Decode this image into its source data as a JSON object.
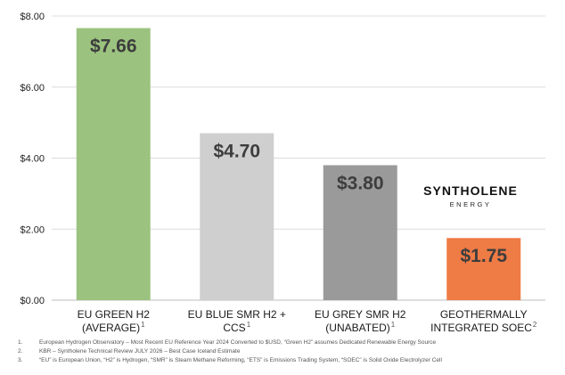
{
  "chart_data": {
    "type": "bar",
    "categories": [
      {
        "line1": "EU GREEN H2",
        "line2": "(AVERAGE)",
        "sup": "1"
      },
      {
        "line1": "EU BLUE SMR H2 +",
        "line2": "CCS",
        "sup": "1"
      },
      {
        "line1": "EU GREY SMR H2",
        "line2": "(UNABATED)",
        "sup": "1"
      },
      {
        "line1": "GEOTHERMALLY",
        "line2": "INTEGRATED SOEC",
        "sup": "2"
      }
    ],
    "values": [
      7.66,
      4.7,
      3.8,
      1.75
    ],
    "data_labels": [
      "$7.66",
      "$4.70",
      "$3.80",
      "$1.75"
    ],
    "bar_colors": [
      "#9bc37f",
      "#cfcfcf",
      "#9a9a9a",
      "#ef7b45"
    ],
    "ylim": [
      0,
      8
    ],
    "yticks": [
      {
        "value": 0,
        "label": "$0.00"
      },
      {
        "value": 2,
        "label": "$2.00"
      },
      {
        "value": 4,
        "label": "$4.00"
      },
      {
        "value": 6,
        "label": "$6.00"
      },
      {
        "value": 8,
        "label": "$8.00"
      }
    ],
    "grid": true,
    "title": "",
    "xlabel": "",
    "ylabel": ""
  },
  "brand": {
    "name": "SYNTHOLENE",
    "tagline": "ENERGY"
  },
  "footnotes": [
    {
      "num": "1.",
      "text": "European Hydrogen Observatory – Most Recent EU Reference Year 2024 Converted to $USD, “Green H2” assumes Dedicated Renewable Energy Source"
    },
    {
      "num": "2.",
      "text": "KBR – Syntholene Technical Review JULY 2026 – Best Case Iceland Estimate"
    },
    {
      "num": "3.",
      "text": "“EU” is European Union, “H2” is Hydrogen, “SMR” is Steam Methane Reforming, “ETS” is Emissions Trading System, “SOEC” is Solid Oxide Electrolyzer Cell"
    }
  ]
}
